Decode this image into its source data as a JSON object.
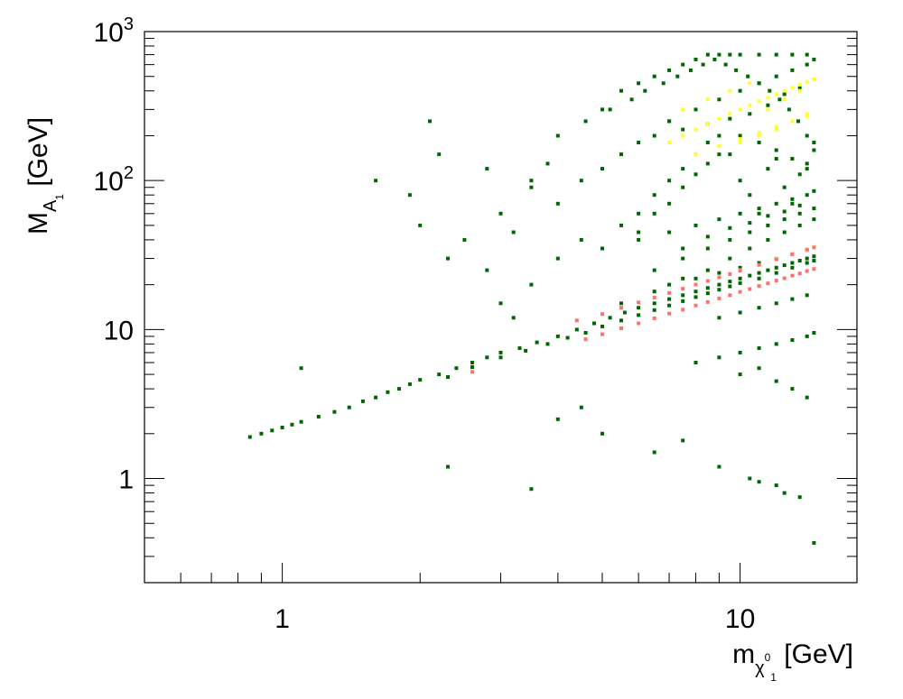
{
  "chart_data": {
    "type": "scatter",
    "title": "",
    "x_scale": "log",
    "y_scale": "log",
    "xlim": [
      0.5,
      18
    ],
    "ylim": [
      0.2,
      1000
    ],
    "grid": false,
    "x_ticks": [
      {
        "value": 1,
        "label": "1"
      },
      {
        "value": 10,
        "label": "10"
      }
    ],
    "y_ticks": [
      {
        "value": 1,
        "label": "1"
      },
      {
        "value": 10,
        "label": "10"
      },
      {
        "value": 100,
        "label": "10",
        "exp": "2"
      },
      {
        "value": 1000,
        "label": "10",
        "exp": "3"
      }
    ],
    "xlabel": {
      "main": "m",
      "sub": "χ",
      "sub_sup": "0",
      "sub_sub": "1",
      "unit": " [GeV]"
    },
    "ylabel": {
      "main": "M",
      "sub": "A",
      "sub_sub": "1",
      "unit": " [GeV]"
    },
    "colors": {
      "green": "#006600",
      "yellow": "#ffff33",
      "red": "#ff7070",
      "axis": "#000000"
    },
    "series": [
      {
        "color": "#006600",
        "x": [
          0.85,
          0.9,
          0.95,
          1.0,
          1.05,
          1.1,
          1.2,
          1.3,
          1.4,
          1.5,
          1.6,
          1.7,
          1.8,
          1.9,
          2.0,
          2.2,
          2.4,
          2.6,
          2.8,
          3.0,
          3.3,
          3.6,
          4.0,
          4.4,
          4.8,
          5.2,
          5.6,
          6.0,
          6.5,
          7.0,
          7.5,
          8.0,
          8.5,
          9.0,
          9.5,
          10,
          10.5,
          11,
          11.5,
          12,
          12.5,
          13,
          13.5,
          14,
          14.5,
          2.3,
          2.6,
          3.0,
          3.4,
          3.8,
          4.2,
          4.6,
          5.0,
          5.5,
          6.0,
          6.5,
          7.0,
          7.5,
          8.0,
          8.5,
          9.0,
          9.5,
          10,
          11,
          12,
          13,
          14,
          14.5,
          6.0,
          6.5,
          7.0,
          7.5,
          8.0,
          8.5,
          9.0,
          9.5,
          10,
          10.5,
          11,
          11.5,
          12,
          12.5,
          13,
          13.5,
          14,
          14.5,
          6.0,
          7.0,
          8.0,
          9.0,
          10,
          11,
          12,
          13,
          14,
          14.5,
          7.5,
          8.5,
          9.5,
          10.5,
          11.5,
          12.5,
          13.5,
          6.5,
          7.5,
          8.5,
          9.5,
          10.5,
          11.5,
          12.5,
          13.5,
          14.5,
          7,
          8,
          9,
          10,
          11,
          12,
          13,
          14,
          5.5,
          6.5,
          7.5,
          8.5,
          9.5,
          10.5,
          11.5,
          12.5,
          13.5,
          14.5,
          9,
          10,
          11,
          12,
          13,
          14,
          3.5,
          4.0,
          4.5,
          5.0,
          5.5,
          6.0,
          6.5,
          7.0,
          7.5,
          8.0,
          8.5,
          9.0,
          10,
          11,
          12,
          13,
          14,
          8,
          9,
          10,
          11,
          12,
          13,
          14,
          14.5,
          10,
          11,
          12,
          13,
          14,
          1.6,
          1.9,
          2.0,
          2.3,
          2.5,
          2.8,
          3.0,
          3.2,
          3.5,
          3.8,
          4.0,
          4.5,
          5.0,
          5.5,
          6.0,
          6.5,
          7.0,
          2.2,
          2.8,
          3.5,
          4.0,
          4.6,
          5.2,
          5.8,
          6.2,
          6.8,
          7.3,
          7.8,
          8.3,
          8.8,
          9.3,
          9.8,
          10.4,
          11,
          11.6,
          12.2,
          12.8,
          13.4,
          14,
          14.5,
          1.1,
          2.1,
          2.3,
          3.5,
          3.0,
          3.2,
          4.0,
          4.5,
          5.0,
          6.5,
          7.5,
          9.0,
          10.5,
          12.0,
          13.5,
          14.5,
          11,
          12.5,
          5.0,
          5.5,
          6.0,
          6.5,
          7.0,
          7.5,
          8.0,
          8.5,
          9.0,
          9.5,
          10,
          11,
          12,
          13,
          14,
          7.0,
          8.0,
          9.0,
          10,
          11,
          12,
          13,
          14,
          14.5,
          7.5,
          8.5,
          9.5,
          10.5,
          11.5,
          12.5,
          13.5
        ],
        "y": [
          1.9,
          2.0,
          2.1,
          2.2,
          2.3,
          2.4,
          2.6,
          2.8,
          3.0,
          3.3,
          3.5,
          3.8,
          4.0,
          4.3,
          4.6,
          5.0,
          5.5,
          6.0,
          6.5,
          7.0,
          7.5,
          8.2,
          9.0,
          10,
          11,
          12,
          13,
          14,
          15,
          16,
          17,
          18,
          19,
          20,
          21,
          22,
          23,
          24,
          25,
          26,
          27,
          28,
          29,
          30,
          31,
          4.8,
          5.6,
          6.5,
          7.2,
          8.0,
          8.8,
          9.5,
          10.5,
          11.5,
          12.5,
          13.5,
          14.5,
          15.5,
          16.5,
          17.5,
          18.5,
          19.5,
          20.5,
          22,
          24,
          26,
          28,
          29,
          60,
          80,
          100,
          120,
          150,
          180,
          200,
          150,
          100,
          80,
          60,
          120,
          140,
          90,
          70,
          110,
          130,
          160,
          40,
          45,
          50,
          55,
          60,
          65,
          70,
          75,
          80,
          85,
          35,
          42,
          48,
          52,
          58,
          62,
          68,
          25,
          30,
          35,
          40,
          45,
          50,
          55,
          60,
          65,
          20,
          22,
          24,
          26,
          28,
          30,
          32,
          34,
          15,
          18,
          22,
          25,
          30,
          35,
          40,
          45,
          50,
          55,
          12,
          13,
          14,
          15,
          16,
          17,
          20,
          30,
          40,
          35,
          50,
          45,
          60,
          70,
          90,
          110,
          130,
          150,
          200,
          180,
          160,
          140,
          120,
          6,
          6.5,
          7,
          7.5,
          8,
          8.5,
          9,
          9.5,
          5,
          5.5,
          4.5,
          4,
          3.5,
          100,
          80,
          50,
          30,
          40,
          25,
          60,
          45,
          90,
          130,
          70,
          100,
          120,
          150,
          180,
          200,
          250,
          150,
          120,
          100,
          200,
          250,
          300,
          350,
          400,
          450,
          500,
          550,
          600,
          650,
          600,
          550,
          500,
          450,
          400,
          350,
          300,
          250,
          200,
          180,
          5.5,
          250,
          1.2,
          0.85,
          15,
          12,
          2.5,
          3,
          2.0,
          1.5,
          1.8,
          1.2,
          1.0,
          0.9,
          0.75,
          0.37,
          0.95,
          0.8,
          300,
          400,
          450,
          500,
          550,
          600,
          650,
          700,
          700,
          700,
          700,
          700,
          700,
          700,
          700,
          250,
          300,
          350,
          400,
          450,
          500,
          550,
          600,
          650,
          220,
          240,
          260,
          280,
          320,
          380,
          420
        ]
      },
      {
        "color": "#ffff33",
        "x": [
          7.0,
          7.5,
          8.0,
          8.5,
          9.0,
          9.5,
          10,
          10.5,
          11,
          11.5,
          12,
          12.5,
          13,
          13.5,
          14,
          14.5,
          8.0,
          9.0,
          10,
          11,
          12,
          13,
          14,
          7.5,
          8.5,
          9.5,
          10.5,
          11.5,
          12.5,
          13.5,
          10,
          11,
          12,
          13,
          14,
          14.5,
          9,
          10,
          11,
          12,
          13,
          14
        ],
        "y": [
          180,
          200,
          220,
          240,
          260,
          280,
          300,
          320,
          340,
          360,
          380,
          400,
          420,
          440,
          460,
          480,
          150,
          170,
          190,
          210,
          230,
          250,
          270,
          300,
          350,
          400,
          450,
          300,
          350,
          400,
          25,
          27,
          30,
          32,
          34,
          36,
          170,
          180,
          200,
          220,
          250,
          280
        ]
      },
      {
        "color": "#ff7070",
        "x": [
          4.6,
          5.0,
          5.5,
          6.0,
          6.5,
          7.0,
          7.5,
          8.0,
          8.5,
          9.0,
          9.5,
          10,
          10.5,
          11,
          11.5,
          12,
          12.5,
          13,
          13.5,
          14,
          14.5,
          4.4,
          5.0,
          5.5,
          6.0,
          6.5,
          7.0,
          7.5,
          8.0,
          8.5,
          9.0,
          9.5,
          10,
          11,
          12,
          13,
          14,
          14.5,
          2.6
        ],
        "y": [
          8.6,
          9.3,
          10.2,
          11,
          11.9,
          12.8,
          13.6,
          14.5,
          15.3,
          16.2,
          17,
          17.9,
          18.7,
          19.6,
          20.4,
          21.3,
          22.1,
          23,
          23.8,
          24.7,
          25.5,
          11.5,
          12.7,
          14,
          15.2,
          16.4,
          17.6,
          18.8,
          20,
          21.2,
          22.4,
          23.6,
          24.8,
          27.2,
          29.6,
          32,
          34.4,
          35.6,
          5.2
        ]
      }
    ]
  }
}
